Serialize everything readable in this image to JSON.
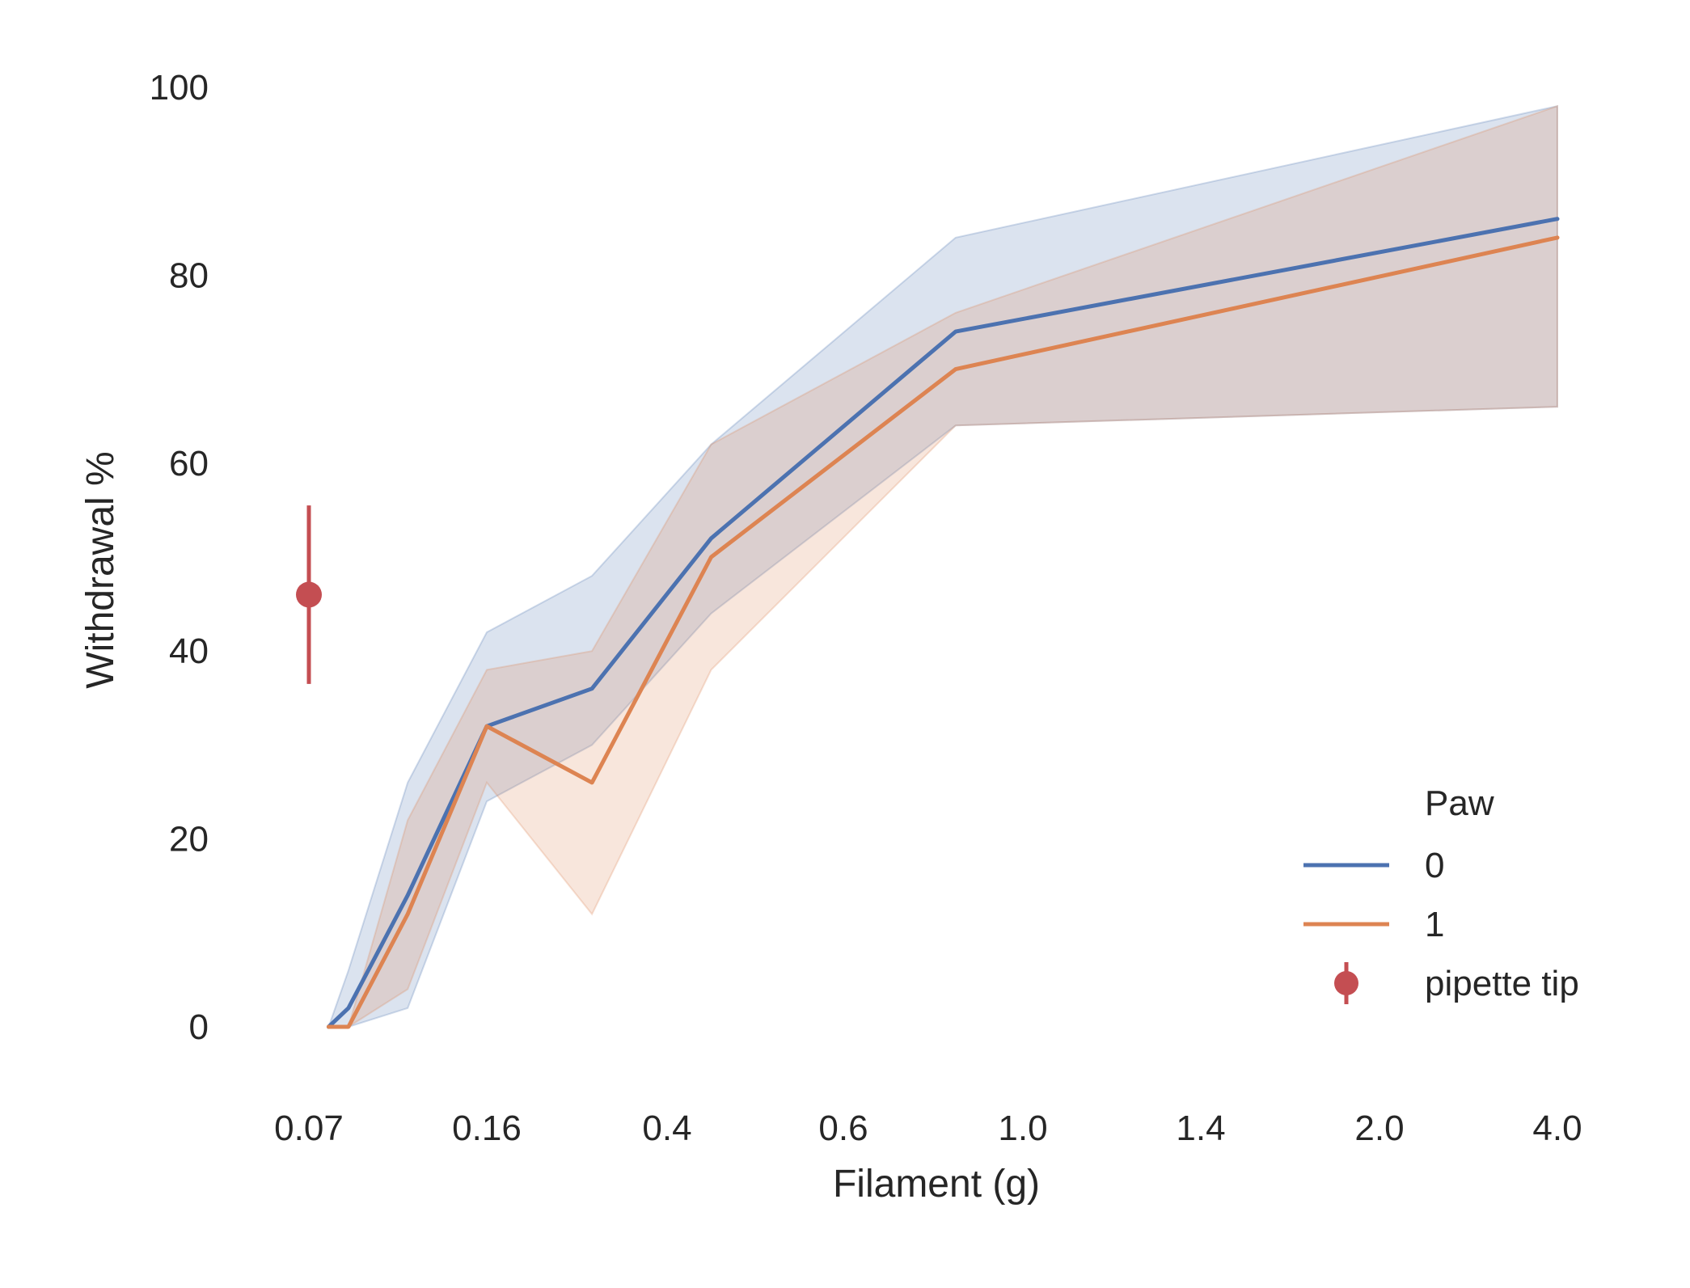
{
  "chart_data": {
    "type": "line",
    "xlabel": "Filament (g)",
    "ylabel": "Withdrawal %",
    "ylim": [
      -7,
      100
    ],
    "yticks": [
      0,
      20,
      40,
      60,
      80,
      100
    ],
    "x_tick_labels": [
      "0.07",
      "0.16",
      "0.4",
      "0.6",
      "1.0",
      "1.4",
      "2.0",
      "4.0"
    ],
    "x_tick_positions": [
      0.07,
      0.16,
      0.4,
      0.6,
      1.0,
      1.4,
      2.0,
      4.0
    ],
    "grid": false,
    "legend": {
      "title": "Paw",
      "placement": "bottom-right",
      "entries": [
        "0",
        "1",
        "pipette tip"
      ]
    },
    "series": [
      {
        "name": "0",
        "color": "#4c72b0",
        "x": [
          0.08,
          0.09,
          0.12,
          0.16,
          0.3,
          0.45,
          0.85,
          4.0
        ],
        "y": [
          0,
          2,
          14,
          32,
          36,
          52,
          74,
          86
        ],
        "ci_low": [
          0,
          0,
          2,
          24,
          30,
          44,
          64,
          66
        ],
        "ci_high": [
          0,
          6,
          26,
          42,
          48,
          62,
          84,
          98
        ]
      },
      {
        "name": "1",
        "color": "#dd8452",
        "x": [
          0.08,
          0.09,
          0.12,
          0.16,
          0.3,
          0.45,
          0.85,
          4.0
        ],
        "y": [
          0,
          0,
          12,
          32,
          26,
          50,
          70,
          84
        ],
        "ci_low": [
          0,
          0,
          4,
          26,
          12,
          38,
          64,
          66
        ],
        "ci_high": [
          0,
          0,
          22,
          38,
          40,
          62,
          76,
          98
        ]
      }
    ],
    "points": [
      {
        "name": "pipette tip",
        "color": "#c44e52",
        "x": 0.07,
        "y": 46,
        "err_low": 36.5,
        "err_high": 55.5
      }
    ]
  }
}
